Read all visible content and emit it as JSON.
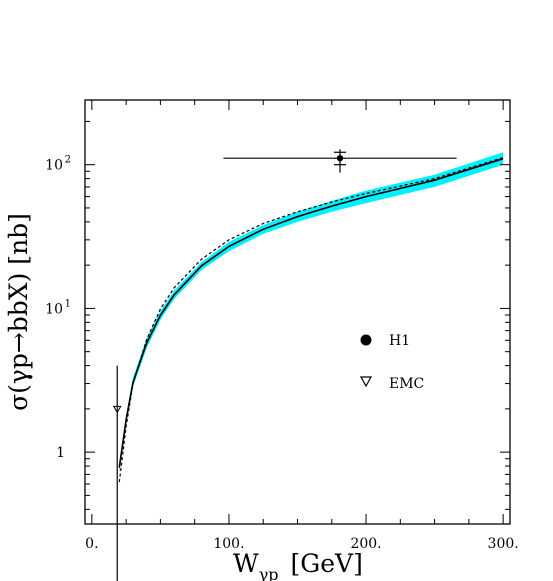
{
  "chart_data": {
    "type": "line",
    "title": "",
    "xlabel": "W",
    "xlabel_sub": "γp",
    "xlabel_unit": "[GeV]",
    "ylabel": "σ(γp→bbX)   [nb]",
    "xlim": [
      -5,
      305
    ],
    "ylim_log10": [
      -0.5,
      2.45
    ],
    "log_y": true,
    "grid": false,
    "legend_placement": "right-middle",
    "x_ticks": [
      {
        "value": 0,
        "label": "0."
      },
      {
        "value": 100,
        "label": "100."
      },
      {
        "value": 200,
        "label": "200."
      },
      {
        "value": 300,
        "label": "300."
      }
    ],
    "y_ticks": [
      {
        "value": 1,
        "label": "1"
      },
      {
        "value": 10,
        "label": "10",
        "exp": "1"
      },
      {
        "value": 100,
        "label": "10",
        "exp": "2"
      }
    ],
    "band_color": "#00f0ff",
    "series": [
      {
        "role": "band",
        "x": [
          20,
          25,
          30,
          40,
          50,
          60,
          80,
          100,
          125,
          150,
          175,
          200,
          250,
          300
        ],
        "y_low": [
          0.72,
          1.55,
          2.85,
          5.3,
          8.3,
          11.6,
          18.5,
          25.0,
          33.0,
          40.0,
          47.0,
          54.0,
          70.0,
          100.0
        ],
        "y_high": [
          0.85,
          1.8,
          3.3,
          6.2,
          9.6,
          13.3,
          21.0,
          29.0,
          38.0,
          47.0,
          56.0,
          66.0,
          85.0,
          122.0
        ]
      },
      {
        "role": "central",
        "style": "solid",
        "x": [
          20,
          25,
          30,
          40,
          50,
          60,
          80,
          100,
          125,
          150,
          175,
          200,
          250,
          300
        ],
        "y": [
          0.78,
          1.68,
          3.05,
          5.75,
          8.95,
          12.4,
          19.8,
          27.0,
          35.5,
          43.5,
          51.5,
          60.0,
          78.0,
          110.0
        ]
      },
      {
        "role": "alternative",
        "style": "dashed",
        "x": [
          20,
          25,
          30,
          40,
          50,
          60,
          80,
          100,
          125,
          150,
          175,
          200,
          250,
          300
        ],
        "y": [
          0.62,
          1.5,
          3.0,
          6.1,
          9.9,
          13.9,
          22.0,
          30.0,
          39.0,
          47.0,
          55.0,
          63.0,
          80.0,
          112.0
        ]
      }
    ],
    "points": [
      {
        "name": "H1",
        "marker": "filled-circle",
        "x": 181,
        "y": 111,
        "xerr": [
          96,
          266
        ],
        "yerr": [
          88,
          128
        ],
        "y_inner_err": [
          100,
          122
        ]
      },
      {
        "name": "EMC",
        "marker": "open-triangle-down",
        "x": 18.5,
        "y": 2.0,
        "yerr": [
          0.12,
          4.0
        ]
      }
    ]
  }
}
